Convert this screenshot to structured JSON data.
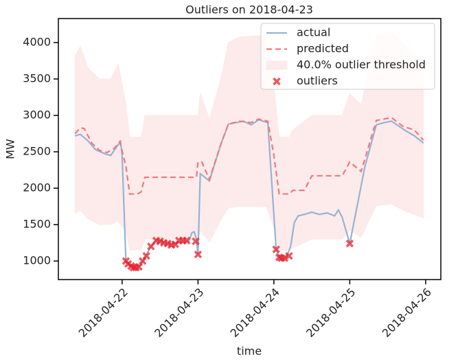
{
  "chart_data": {
    "type": "line",
    "title": "Outliers on 2018-04-23",
    "x_label": "time",
    "y_label": "MW",
    "xlim": [
      -0.84,
      4.2
    ],
    "ylim": [
      745,
      4330
    ],
    "xticks": [
      {
        "value": 0,
        "label": "2018-04-22"
      },
      {
        "value": 1,
        "label": "2018-04-23"
      },
      {
        "value": 2,
        "label": "2018-04-24"
      },
      {
        "value": 3,
        "label": "2018-04-25"
      },
      {
        "value": 4,
        "label": "2018-04-26"
      }
    ],
    "yticks": [
      1000,
      1500,
      2000,
      2500,
      3000,
      3500,
      4000
    ],
    "legend": "upper right",
    "series": [
      {
        "name": "actual",
        "style": "solid",
        "color": "#93b3d6",
        "x": [
          -0.62,
          -0.55,
          -0.45,
          -0.35,
          -0.22,
          -0.15,
          -0.05,
          -0.02,
          0.0,
          0.05,
          0.1,
          0.15,
          0.2,
          0.25,
          0.3,
          0.38,
          0.45,
          0.5,
          0.6,
          0.7,
          0.8,
          0.88,
          0.92,
          0.95,
          0.98,
          1.0,
          1.03,
          1.15,
          1.3,
          1.4,
          1.5,
          1.6,
          1.7,
          1.8,
          1.92,
          2.03,
          2.07,
          2.12,
          2.17,
          2.22,
          2.27,
          2.32,
          2.4,
          2.5,
          2.6,
          2.7,
          2.8,
          2.85,
          2.9,
          3.0,
          3.2,
          3.35,
          3.45,
          3.55,
          3.65,
          3.75,
          3.85,
          3.97
        ],
        "values": [
          2720,
          2740,
          2650,
          2530,
          2470,
          2450,
          2600,
          2640,
          2450,
          1000,
          950,
          920,
          900,
          950,
          1050,
          1200,
          1290,
          1280,
          1240,
          1230,
          1280,
          1270,
          1390,
          1400,
          1300,
          1090,
          2200,
          2100,
          2600,
          2880,
          2900,
          2920,
          2870,
          2940,
          2900,
          1160,
          1050,
          1030,
          1060,
          1200,
          1530,
          1620,
          1640,
          1670,
          1640,
          1660,
          1620,
          1700,
          1600,
          1240,
          2300,
          2870,
          2900,
          2920,
          2850,
          2780,
          2720,
          2620
        ]
      },
      {
        "name": "predicted",
        "style": "dashed",
        "color": "#f07a7a",
        "x": [
          -0.62,
          -0.55,
          -0.5,
          -0.4,
          -0.3,
          -0.2,
          -0.1,
          -0.03,
          0.05,
          0.1,
          0.2,
          0.25,
          0.3,
          0.98,
          1.0,
          1.05,
          1.15,
          1.3,
          1.4,
          1.55,
          1.7,
          1.8,
          1.92,
          2.0,
          2.07,
          2.2,
          2.25,
          2.4,
          2.5,
          2.9,
          3.0,
          3.15,
          3.35,
          3.55,
          3.7,
          3.85,
          3.97
        ],
        "values": [
          2750,
          2830,
          2820,
          2620,
          2520,
          2490,
          2550,
          2640,
          2300,
          1920,
          1920,
          1950,
          2150,
          2150,
          2360,
          2360,
          2120,
          2600,
          2880,
          2920,
          2900,
          2950,
          2920,
          2450,
          1920,
          1920,
          1970,
          1970,
          2170,
          2170,
          2360,
          2230,
          2930,
          2970,
          2850,
          2800,
          2660
        ]
      },
      {
        "name": "40.0% outlier threshold",
        "style": "band",
        "color": "#fdeaea",
        "x": [
          -0.62,
          -0.55,
          -0.45,
          -0.3,
          -0.15,
          -0.05,
          0.05,
          0.1,
          0.25,
          0.3,
          1.0,
          1.03,
          1.15,
          1.3,
          1.4,
          1.55,
          1.9,
          2.0,
          2.07,
          2.2,
          2.25,
          2.5,
          2.9,
          3.0,
          3.15,
          3.35,
          3.55,
          3.7,
          3.97
        ],
        "upper": [
          3820,
          3950,
          3650,
          3500,
          3500,
          3700,
          3150,
          2700,
          2700,
          3000,
          3000,
          3300,
          2950,
          3500,
          4000,
          4080,
          4100,
          3400,
          2700,
          2700,
          2800,
          3000,
          3000,
          3300,
          3150,
          4100,
          4150,
          4000,
          3750
        ],
        "lower": [
          1650,
          1700,
          1580,
          1500,
          1500,
          1550,
          1400,
          1150,
          1150,
          1300,
          1300,
          1420,
          1260,
          1560,
          1730,
          1750,
          1750,
          1460,
          1150,
          1150,
          1180,
          1300,
          1300,
          1420,
          1330,
          1760,
          1780,
          1700,
          1590
        ]
      },
      {
        "name": "outliers",
        "style": "marker",
        "color": "#e8202a",
        "x": [
          0.05,
          0.08,
          0.12,
          0.15,
          0.18,
          0.22,
          0.27,
          0.32,
          0.38,
          0.45,
          0.5,
          0.55,
          0.6,
          0.65,
          0.7,
          0.75,
          0.8,
          0.85,
          0.97,
          1.0,
          2.03,
          2.07,
          2.1,
          2.14,
          2.2,
          3.0
        ],
        "values": [
          1000,
          960,
          930,
          910,
          910,
          920,
          1000,
          1070,
          1200,
          1280,
          1270,
          1250,
          1240,
          1220,
          1230,
          1280,
          1280,
          1280,
          1270,
          1090,
          1160,
          1050,
          1040,
          1040,
          1070,
          1240
        ]
      }
    ]
  }
}
